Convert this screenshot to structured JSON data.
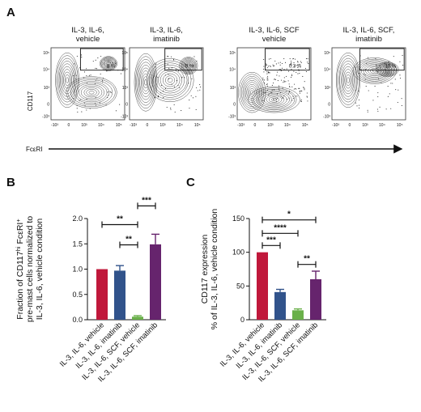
{
  "panel_a": {
    "letter": "A",
    "y_axis_label": "CD117",
    "x_axis_label": "FcεRI",
    "y_tick_labels": [
      "10⁵",
      "10⁴",
      "10³",
      "0",
      "-10³"
    ],
    "x_tick_labels": [
      "-10³",
      "0",
      "10³",
      "10⁴",
      "10⁵"
    ],
    "plots": [
      {
        "title_lines": [
          "IL-3, IL-6,",
          "vehicle"
        ],
        "gate_percent": "8 %"
      },
      {
        "title_lines": [
          "IL-3, IL-6,",
          "imatinib"
        ],
        "gate_percent": "8 %"
      },
      {
        "title_lines": [
          "IL-3, IL-6, SCF",
          "vehicle"
        ],
        "gate_percent": "0.3 %"
      },
      {
        "title_lines": [
          "IL-3, IL-6, SCF,",
          "imatinib"
        ],
        "gate_percent": "10 %"
      }
    ]
  },
  "chart_data": [
    {
      "panel": "B",
      "type": "bar",
      "ylabel_lines": [
        "Fraction of CD117hi FcεRI+",
        "pre-mast cells normalized to",
        "IL-3, IL-6, vehicle condition"
      ],
      "categories": [
        "IL-3, IL-6, vehicle",
        "IL-3, IL-6, imatinib",
        "IL-3, IL-6, SCF, vehicle",
        "IL-3, IL-6, SCF, imatinib"
      ],
      "values": [
        1.0,
        0.97,
        0.06,
        1.49
      ],
      "errors": [
        0,
        0.1,
        0.02,
        0.2
      ],
      "colors": [
        "#c0183b",
        "#31538b",
        "#6ab04a",
        "#66246d"
      ],
      "ylim": [
        0,
        2.0
      ],
      "yticks": [
        "0.0",
        "0.5",
        "1.0",
        "1.5",
        "2.0"
      ],
      "significance": [
        {
          "from": 0,
          "to": 2,
          "level": 1.88,
          "label": "**"
        },
        {
          "from": 1,
          "to": 2,
          "level": 1.48,
          "label": "**"
        },
        {
          "from": 2,
          "to": 3,
          "level": 2.25,
          "label": "***"
        }
      ]
    },
    {
      "panel": "C",
      "type": "bar",
      "ylabel_lines": [
        "CD117 expression",
        "% of IL-3, IL-6, vehicle condition"
      ],
      "categories": [
        "IL-3, IL-6, vehicle",
        "IL-3, IL-6, imatinib",
        "IL-3, IL-6, SCF, vehicle",
        "IL-3, IL-6, SCF, imatinib"
      ],
      "values": [
        100,
        41,
        14,
        60
      ],
      "errors": [
        0,
        4,
        2,
        12
      ],
      "colors": [
        "#c0183b",
        "#31538b",
        "#6ab04a",
        "#66246d"
      ],
      "ylim": [
        0,
        150
      ],
      "yticks": [
        "0",
        "50",
        "100",
        "150"
      ],
      "significance": [
        {
          "from": 0,
          "to": 1,
          "level": 110,
          "label": "***"
        },
        {
          "from": 0,
          "to": 2,
          "level": 128,
          "label": "****"
        },
        {
          "from": 0,
          "to": 3,
          "level": 148,
          "label": "*"
        },
        {
          "from": 2,
          "to": 3,
          "level": 82,
          "label": "**"
        }
      ]
    }
  ]
}
